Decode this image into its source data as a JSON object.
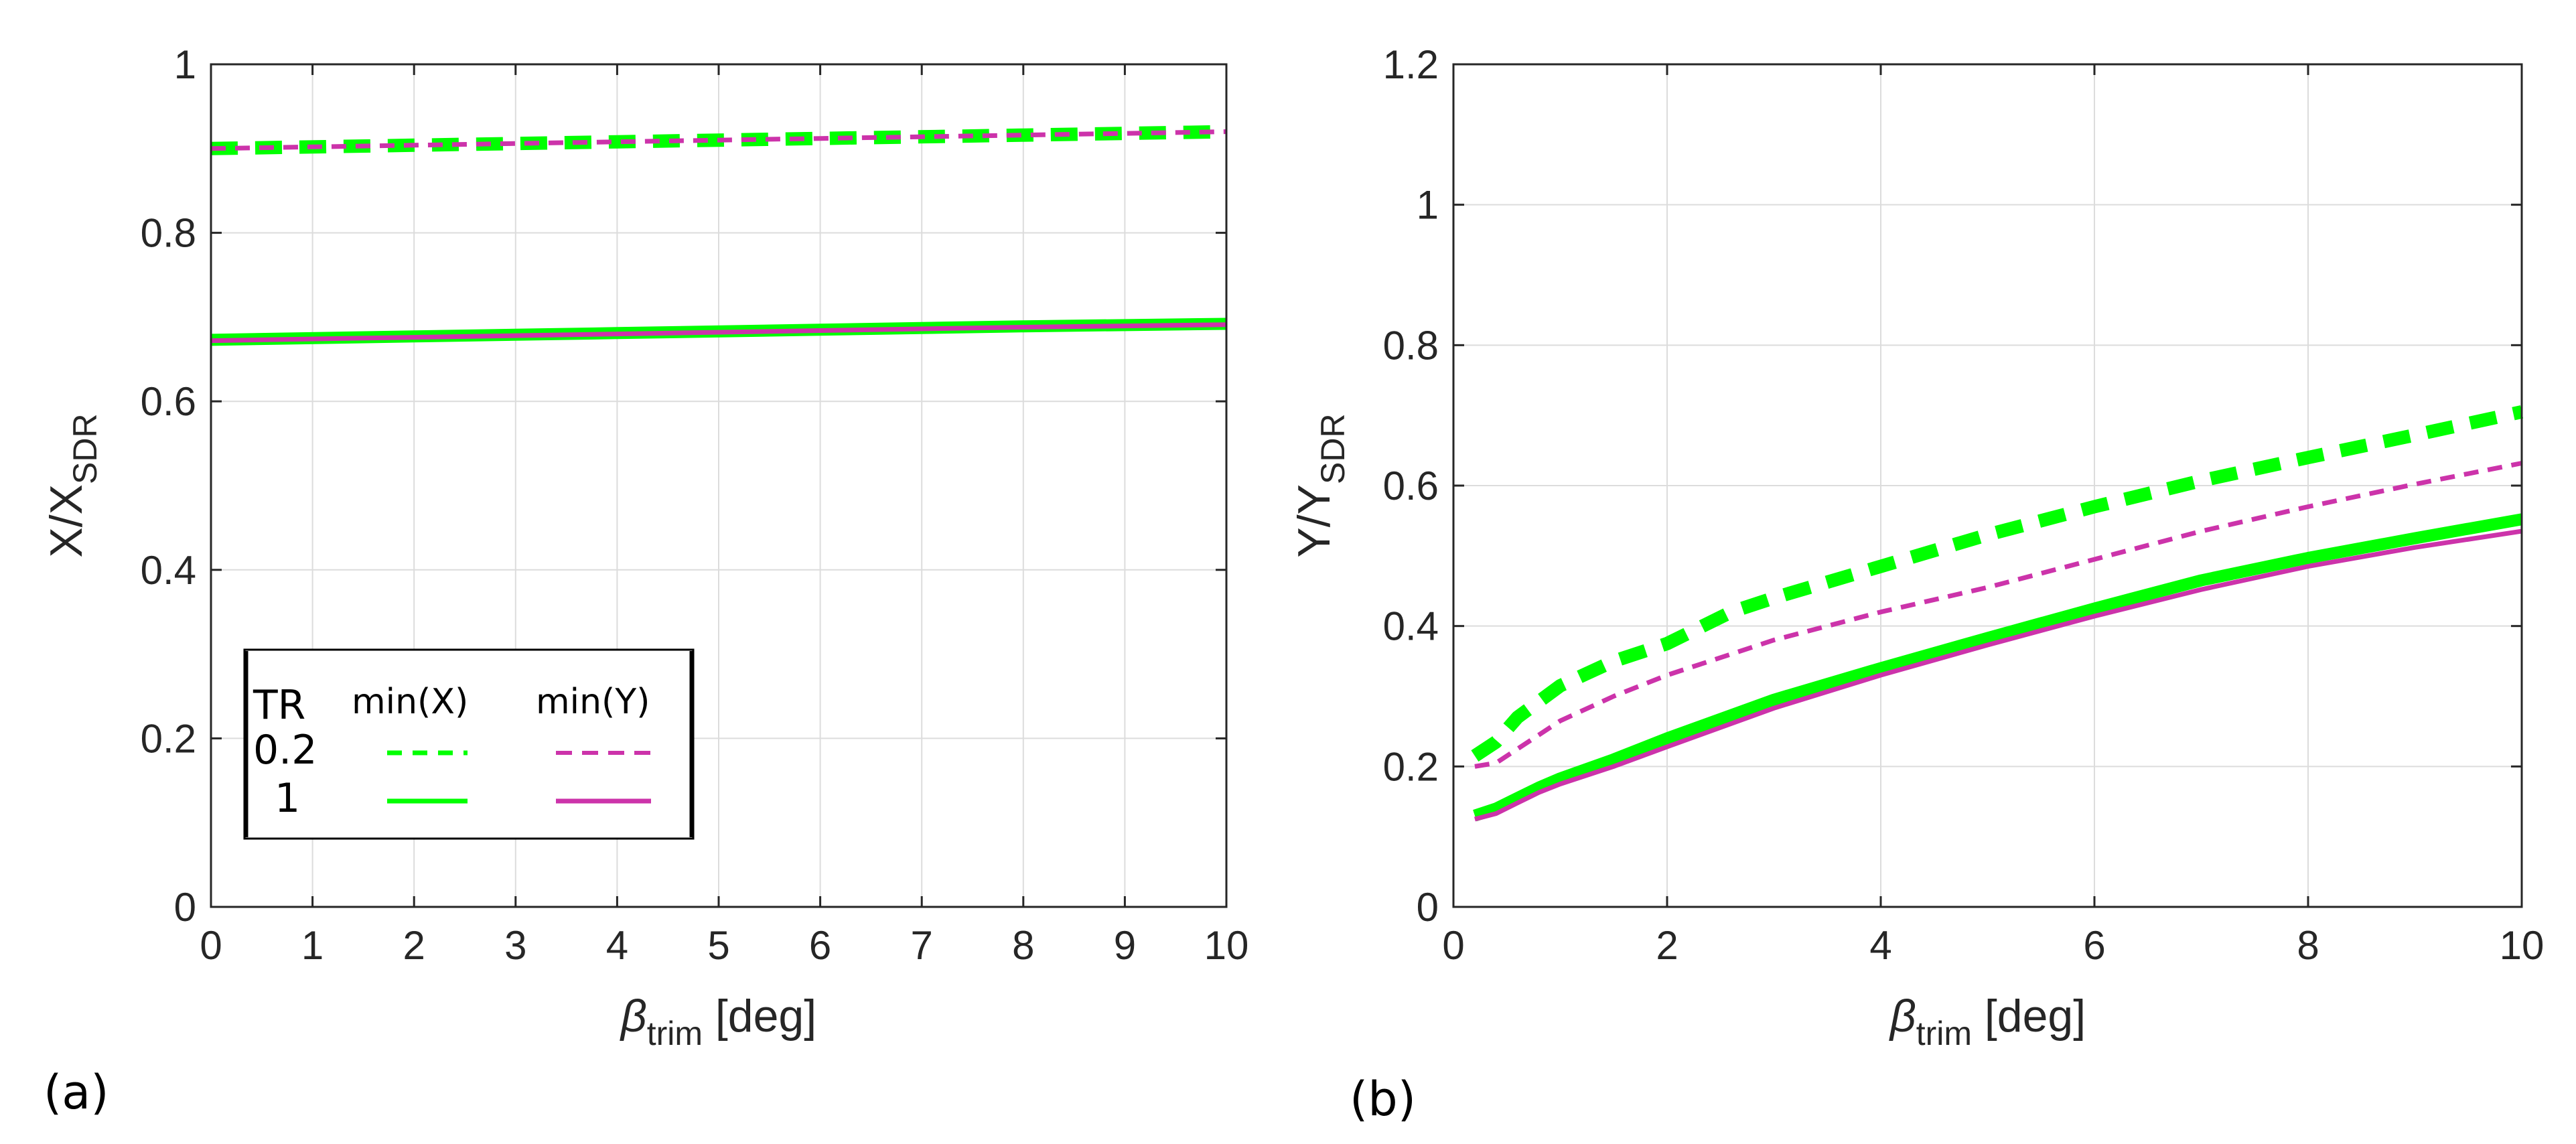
{
  "chart_data": [
    {
      "type": "line",
      "panel_label": "(a)",
      "xlabel": {
        "symbol": "β",
        "subscript": "trim",
        "unit": "[deg]"
      },
      "ylabel": {
        "main": "X/X",
        "subscript": "SDR"
      },
      "xlim": [
        0,
        10
      ],
      "ylim": [
        0,
        1
      ],
      "xticks": [
        0,
        1,
        2,
        3,
        4,
        5,
        6,
        7,
        8,
        9,
        10
      ],
      "yticks": [
        0,
        0.2,
        0.4,
        0.6,
        0.8,
        1
      ],
      "ytick_labels": [
        "0",
        "0.2",
        "0.4",
        "0.6",
        "0.8",
        "1"
      ],
      "grid": true,
      "legend": {
        "placement": "lower-left",
        "header": "TR",
        "col1": "min(X)",
        "col2": "min(Y)",
        "rows": [
          "0.2",
          "1"
        ]
      },
      "series": [
        {
          "name": "min(X), TR=0.2",
          "color": "#00ff00",
          "style": "dashed",
          "weight": "heavy",
          "x": [
            0,
            2,
            4,
            6,
            8,
            10
          ],
          "y": [
            0.9,
            0.904,
            0.908,
            0.912,
            0.916,
            0.92
          ]
        },
        {
          "name": "min(Y), TR=0.2",
          "color": "#cc33aa",
          "style": "dashed",
          "weight": "thin",
          "x": [
            0,
            2,
            4,
            6,
            8,
            10
          ],
          "y": [
            0.9,
            0.904,
            0.908,
            0.912,
            0.916,
            0.92
          ]
        },
        {
          "name": "min(X), TR=1",
          "color": "#00ff00",
          "style": "solid",
          "weight": "heavy",
          "x": [
            0,
            2,
            4,
            6,
            8,
            10
          ],
          "y": [
            0.673,
            0.677,
            0.681,
            0.685,
            0.689,
            0.692
          ]
        },
        {
          "name": "min(Y), TR=1",
          "color": "#cc33aa",
          "style": "solid",
          "weight": "thin",
          "x": [
            0,
            2,
            4,
            6,
            8,
            10
          ],
          "y": [
            0.672,
            0.676,
            0.68,
            0.684,
            0.688,
            0.691
          ]
        }
      ]
    },
    {
      "type": "line",
      "panel_label": "(b)",
      "xlabel": {
        "symbol": "β",
        "subscript": "trim",
        "unit": "[deg]"
      },
      "ylabel": {
        "main": "Y/Y",
        "subscript": "SDR"
      },
      "xlim": [
        0,
        10
      ],
      "ylim": [
        0,
        1.2
      ],
      "xticks": [
        0,
        2,
        4,
        6,
        8,
        10
      ],
      "yticks": [
        0,
        0.2,
        0.4,
        0.6,
        0.8,
        1,
        1.2
      ],
      "ytick_labels": [
        "0",
        "0.2",
        "0.4",
        "0.6",
        "0.8",
        "1",
        "1.2"
      ],
      "grid": true,
      "series": [
        {
          "name": "min(X), TR=0.2",
          "color": "#00ff00",
          "style": "dashed",
          "weight": "heavy",
          "x": [
            0.2,
            0.4,
            0.6,
            1,
            1.5,
            2,
            2.6,
            3,
            4,
            5,
            6,
            7,
            8,
            9,
            10
          ],
          "y": [
            0.215,
            0.235,
            0.27,
            0.315,
            0.35,
            0.375,
            0.42,
            0.44,
            0.485,
            0.53,
            0.57,
            0.607,
            0.64,
            0.672,
            0.705
          ]
        },
        {
          "name": "min(Y), TR=0.2",
          "color": "#cc33aa",
          "style": "dashed",
          "weight": "thin",
          "x": [
            0.2,
            0.4,
            0.6,
            0.8,
            1,
            1.5,
            2,
            3,
            4,
            5,
            6,
            7,
            8,
            9,
            10
          ],
          "y": [
            0.2,
            0.205,
            0.225,
            0.245,
            0.265,
            0.3,
            0.33,
            0.38,
            0.42,
            0.455,
            0.495,
            0.535,
            0.57,
            0.602,
            0.632
          ]
        },
        {
          "name": "min(X), TR=1",
          "color": "#00ff00",
          "style": "solid",
          "weight": "heavy",
          "x": [
            0.2,
            0.4,
            0.6,
            0.8,
            1,
            1.5,
            2,
            3,
            4,
            5,
            6,
            7,
            8,
            9,
            10
          ],
          "y": [
            0.13,
            0.14,
            0.155,
            0.17,
            0.183,
            0.21,
            0.24,
            0.295,
            0.34,
            0.383,
            0.425,
            0.465,
            0.497,
            0.525,
            0.552
          ]
        },
        {
          "name": "min(Y), TR=1",
          "color": "#cc33aa",
          "style": "solid",
          "weight": "thin",
          "x": [
            0.2,
            0.4,
            0.6,
            0.8,
            1,
            1.5,
            2,
            3,
            4,
            5,
            6,
            7,
            8,
            9,
            10
          ],
          "y": [
            0.125,
            0.133,
            0.148,
            0.163,
            0.175,
            0.2,
            0.228,
            0.283,
            0.33,
            0.373,
            0.414,
            0.452,
            0.485,
            0.512,
            0.535
          ]
        }
      ]
    }
  ]
}
